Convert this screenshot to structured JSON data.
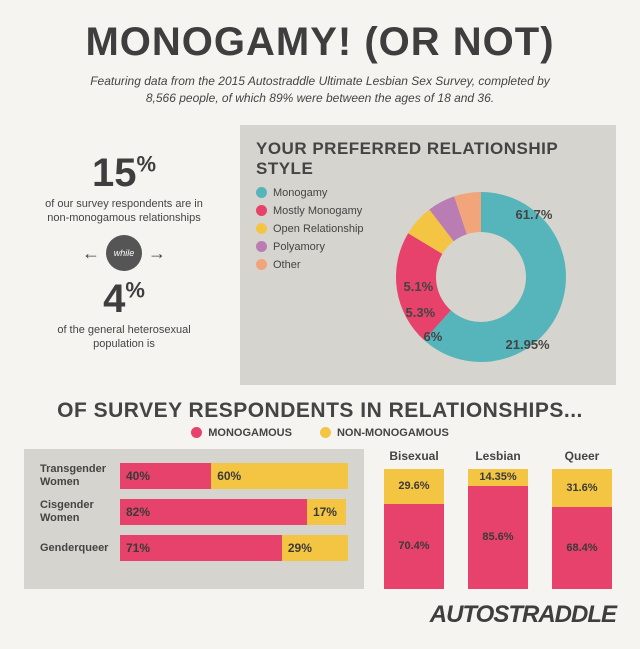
{
  "title": "MONOGAMY! (OR NOT)",
  "subtitle": "Featuring data from the 2015 Autostraddle Ultimate Lesbian Sex Survey, completed by 8,566 people, of which 89% were between the ages of 18 and 36.",
  "left_stats": {
    "pct1": "15",
    "pct1_sign": "%",
    "txt1": "of our survey respondents are in non-monogamous relationships",
    "while": "while",
    "pct2": "4",
    "pct2_sign": "%",
    "txt2": "of the general heterosexual population is"
  },
  "donut": {
    "title": "YOUR PREFERRED RELATIONSHIP STYLE",
    "type": "donut",
    "background_color": "#d6d4ce",
    "inner_radius": 45,
    "outer_radius": 85,
    "slices": [
      {
        "label": "Monogamy",
        "value": 61.7,
        "display": "61.7%",
        "color": "#55b5bb"
      },
      {
        "label": "Mostly Monogamy",
        "value": 21.95,
        "display": "21.95%",
        "color": "#e6426b"
      },
      {
        "label": "Open Relationship",
        "value": 6,
        "display": "6%",
        "color": "#f4c443"
      },
      {
        "label": "Polyamory",
        "value": 5.3,
        "display": "5.3%",
        "color": "#b97db3"
      },
      {
        "label": "Other",
        "value": 5.1,
        "display": "5.1%",
        "color": "#f2a57a"
      }
    ]
  },
  "section2_title": "OF SURVEY RESPONDENTS IN RELATIONSHIPS...",
  "legend2": {
    "mono": {
      "label": "MONOGAMOUS",
      "color": "#e6426b"
    },
    "nonmono": {
      "label": "NON-MONOGAMOUS",
      "color": "#f4c443"
    }
  },
  "hbars": {
    "type": "stacked-horizontal-bar",
    "background_color": "#d6d4ce",
    "rows": [
      {
        "label": "Transgender Women",
        "mono": 40,
        "mono_display": "40%",
        "nonmono": 60,
        "nonmono_display": "60%"
      },
      {
        "label": "Cisgender Women",
        "mono": 82,
        "mono_display": "82%",
        "nonmono": 17,
        "nonmono_display": "17%"
      },
      {
        "label": "Genderqueer",
        "mono": 71,
        "mono_display": "71%",
        "nonmono": 29,
        "nonmono_display": "29%"
      }
    ]
  },
  "vbars": {
    "type": "stacked-vertical-bar",
    "cols": [
      {
        "label": "Bisexual",
        "nonmono": 29.6,
        "nonmono_display": "29.6%",
        "mono": 70.4,
        "mono_display": "70.4%"
      },
      {
        "label": "Lesbian",
        "nonmono": 14.35,
        "nonmono_display": "14.35%",
        "mono": 85.6,
        "mono_display": "85.6%"
      },
      {
        "label": "Queer",
        "nonmono": 31.6,
        "nonmono_display": "31.6%",
        "mono": 68.4,
        "mono_display": "68.4%"
      }
    ]
  },
  "footer": "AUTOSTRADDLE",
  "colors": {
    "mono": "#e6426b",
    "nonmono": "#f4c443",
    "bg_panel": "#d6d4ce",
    "bg_page": "#f5f4f1",
    "text": "#3e3e3e"
  }
}
